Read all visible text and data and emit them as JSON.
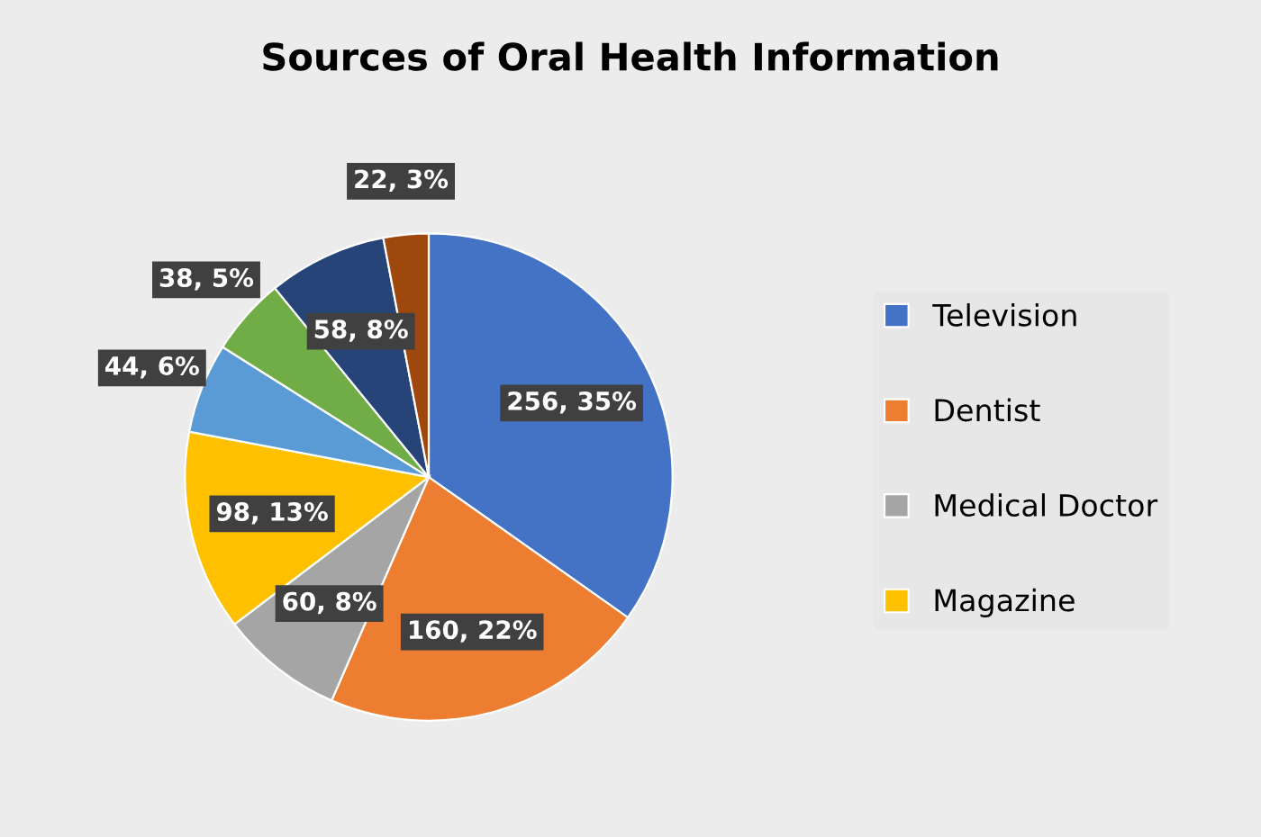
{
  "chart_data": {
    "type": "pie",
    "title": "Sources of Oral Health Information",
    "categories": [
      "Television",
      "Dentist",
      "Medical Doctor",
      "Magazine",
      null,
      null,
      null,
      null
    ],
    "values": [
      256,
      160,
      60,
      98,
      44,
      38,
      58,
      22
    ],
    "colors": [
      "#4472c4",
      "#ed7d31",
      "#a5a5a5",
      "#ffc000",
      "#5b9bd5",
      "#70ad47",
      "#264478",
      "#9e480e"
    ],
    "value_labels": [
      "256, 35%",
      "160, 22%",
      "60, 8%",
      "98, 13%",
      "44, 6%",
      "38, 5%",
      "58, 8%",
      "22, 3%"
    ],
    "legend": "right"
  }
}
